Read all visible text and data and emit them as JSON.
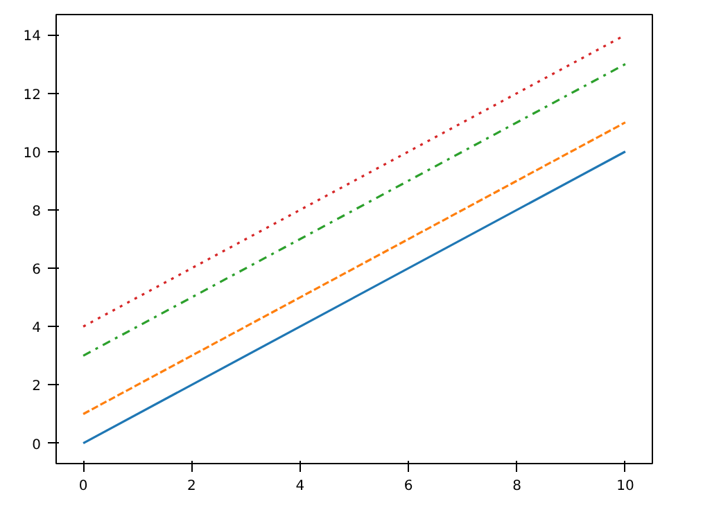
{
  "chart_data": {
    "type": "line",
    "x": [
      0,
      10
    ],
    "series": [
      {
        "color": "#1f77b4",
        "values": [
          0,
          10
        ],
        "line_style": "solid"
      },
      {
        "color": "#ff7f0e",
        "values": [
          1,
          11
        ],
        "line_style": "dashed"
      },
      {
        "color": "#2ca02c",
        "values": [
          3,
          13
        ],
        "line_style": "dashdot"
      },
      {
        "color": "#d62728",
        "values": [
          4,
          14
        ],
        "line_style": "dotted"
      }
    ],
    "xlim": [
      -0.5,
      10.5
    ],
    "xticks": [
      0,
      2,
      4,
      6,
      8,
      10
    ],
    "ylim": [
      -0.7,
      14.7
    ],
    "yticks": [
      0,
      2,
      4,
      6,
      8,
      10,
      12,
      14
    ],
    "grid": false,
    "marker": "none"
  }
}
